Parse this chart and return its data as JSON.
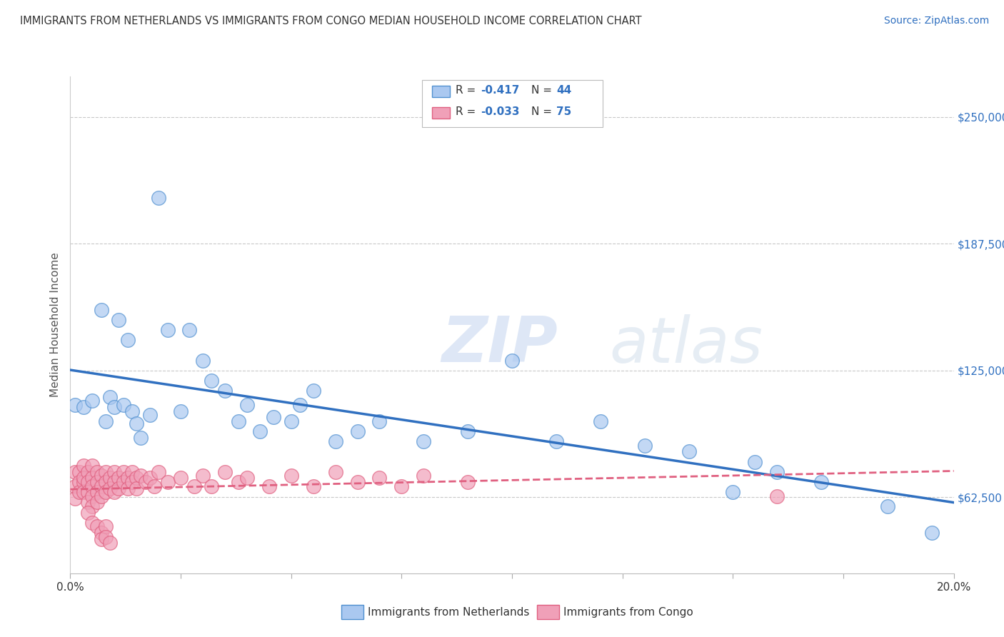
{
  "title": "IMMIGRANTS FROM NETHERLANDS VS IMMIGRANTS FROM CONGO MEDIAN HOUSEHOLD INCOME CORRELATION CHART",
  "source": "Source: ZipAtlas.com",
  "ylabel": "Median Household Income",
  "xlim": [
    0.0,
    0.2
  ],
  "ylim": [
    25000,
    270000
  ],
  "yticks": [
    62500,
    125000,
    187500,
    250000
  ],
  "ytick_labels": [
    "$62,500",
    "$125,000",
    "$187,500",
    "$250,000"
  ],
  "xticks": [
    0.0,
    0.025,
    0.05,
    0.075,
    0.1,
    0.125,
    0.15,
    0.175,
    0.2
  ],
  "xtick_labels_shown": {
    "0.0": "0.0%",
    "0.2": "20.0%"
  },
  "watermark_zip": "ZIP",
  "watermark_atlas": "atlas",
  "netherlands_color": "#aac8f0",
  "netherlands_edge_color": "#5090d0",
  "congo_color": "#f0a0b8",
  "congo_edge_color": "#e06080",
  "netherlands_line_color": "#3070c0",
  "congo_line_color": "#e06080",
  "netherlands_R": -0.417,
  "netherlands_N": 44,
  "congo_R": -0.033,
  "congo_N": 75,
  "legend_label_netherlands": "Immigrants from Netherlands",
  "legend_label_congo": "Immigrants from Congo",
  "netherlands_scatter_x": [
    0.001,
    0.003,
    0.005,
    0.007,
    0.008,
    0.009,
    0.01,
    0.011,
    0.012,
    0.013,
    0.014,
    0.015,
    0.016,
    0.018,
    0.02,
    0.022,
    0.025,
    0.027,
    0.03,
    0.032,
    0.035,
    0.038,
    0.04,
    0.043,
    0.046,
    0.05,
    0.052,
    0.055,
    0.06,
    0.065,
    0.07,
    0.08,
    0.09,
    0.1,
    0.11,
    0.12,
    0.13,
    0.14,
    0.15,
    0.155,
    0.16,
    0.17,
    0.185,
    0.195
  ],
  "netherlands_scatter_y": [
    108000,
    107000,
    110000,
    155000,
    100000,
    112000,
    107000,
    150000,
    108000,
    140000,
    105000,
    99000,
    92000,
    103000,
    210000,
    145000,
    105000,
    145000,
    130000,
    120000,
    115000,
    100000,
    108000,
    95000,
    102000,
    100000,
    108000,
    115000,
    90000,
    95000,
    100000,
    90000,
    95000,
    130000,
    90000,
    100000,
    88000,
    85000,
    65000,
    80000,
    75000,
    70000,
    58000,
    45000
  ],
  "congo_scatter_x": [
    0.001,
    0.001,
    0.001,
    0.002,
    0.002,
    0.002,
    0.003,
    0.003,
    0.003,
    0.003,
    0.004,
    0.004,
    0.004,
    0.004,
    0.005,
    0.005,
    0.005,
    0.005,
    0.005,
    0.006,
    0.006,
    0.006,
    0.006,
    0.007,
    0.007,
    0.007,
    0.008,
    0.008,
    0.008,
    0.009,
    0.009,
    0.01,
    0.01,
    0.01,
    0.011,
    0.011,
    0.012,
    0.012,
    0.013,
    0.013,
    0.014,
    0.014,
    0.015,
    0.015,
    0.016,
    0.017,
    0.018,
    0.019,
    0.02,
    0.022,
    0.025,
    0.028,
    0.03,
    0.032,
    0.035,
    0.038,
    0.04,
    0.045,
    0.05,
    0.055,
    0.06,
    0.065,
    0.07,
    0.075,
    0.08,
    0.09,
    0.004,
    0.005,
    0.006,
    0.007,
    0.007,
    0.008,
    0.008,
    0.009,
    0.16
  ],
  "congo_scatter_y": [
    75000,
    68000,
    62000,
    75000,
    70000,
    65000,
    78000,
    70000,
    65000,
    72000,
    75000,
    70000,
    65000,
    60000,
    78000,
    72000,
    68000,
    63000,
    58000,
    75000,
    70000,
    65000,
    60000,
    73000,
    68000,
    63000,
    75000,
    70000,
    65000,
    72000,
    67000,
    75000,
    70000,
    65000,
    72000,
    67000,
    75000,
    70000,
    72000,
    67000,
    75000,
    70000,
    72000,
    67000,
    73000,
    70000,
    72000,
    68000,
    75000,
    70000,
    72000,
    68000,
    73000,
    68000,
    75000,
    70000,
    72000,
    68000,
    73000,
    68000,
    75000,
    70000,
    72000,
    68000,
    73000,
    70000,
    55000,
    50000,
    48000,
    45000,
    42000,
    48000,
    43000,
    40000,
    63000
  ],
  "grid_color": "#c8c8c8",
  "background_color": "#ffffff",
  "title_fontsize": 10.5,
  "axis_label_fontsize": 11,
  "tick_fontsize": 11,
  "source_fontsize": 10
}
